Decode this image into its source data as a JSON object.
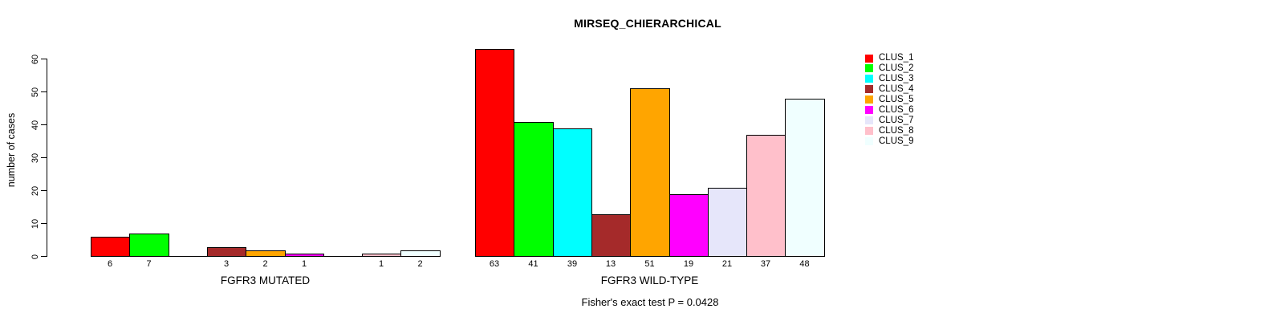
{
  "chart_data": {
    "type": "bar",
    "title": "MIRSEQ_CHIERARCHICAL",
    "ylabel": "number of cases",
    "xlabel": "",
    "ylim": [
      0,
      60
    ],
    "yticks": [
      0,
      10,
      20,
      30,
      40,
      50,
      60
    ],
    "grid": false,
    "legend_position": "right",
    "categories": [
      "FGFR3 MUTATED",
      "FGFR3 WILD-TYPE"
    ],
    "series": [
      {
        "name": "CLUS_1",
        "color": "#FF0000",
        "values": [
          6,
          63
        ]
      },
      {
        "name": "CLUS_2",
        "color": "#00FF00",
        "values": [
          7,
          41
        ]
      },
      {
        "name": "CLUS_3",
        "color": "#00FFFF",
        "values": [
          0,
          39
        ]
      },
      {
        "name": "CLUS_4",
        "color": "#A52A2A",
        "values": [
          3,
          13
        ]
      },
      {
        "name": "CLUS_5",
        "color": "#FFA500",
        "values": [
          2,
          51
        ]
      },
      {
        "name": "CLUS_6",
        "color": "#FF00FF",
        "values": [
          1,
          19
        ]
      },
      {
        "name": "CLUS_7",
        "color": "#E6E6FA",
        "values": [
          0,
          21
        ]
      },
      {
        "name": "CLUS_8",
        "color": "#FFC0CB",
        "values": [
          1,
          37
        ]
      },
      {
        "name": "CLUS_9",
        "color": "#F0FFFF",
        "values": [
          2,
          48
        ]
      }
    ],
    "groups": [
      {
        "label": "FGFR3 MUTATED",
        "values": [
          6,
          7,
          0,
          3,
          2,
          1,
          0,
          1,
          2
        ]
      },
      {
        "label": "FGFR3 WILD-TYPE",
        "values": [
          63,
          41,
          39,
          13,
          51,
          19,
          21,
          37,
          48
        ]
      }
    ],
    "bar_label_rule": "value shown under each bar; zero-value bars unlabeled",
    "annotation": "Fisher's exact test P = 0.0428"
  }
}
